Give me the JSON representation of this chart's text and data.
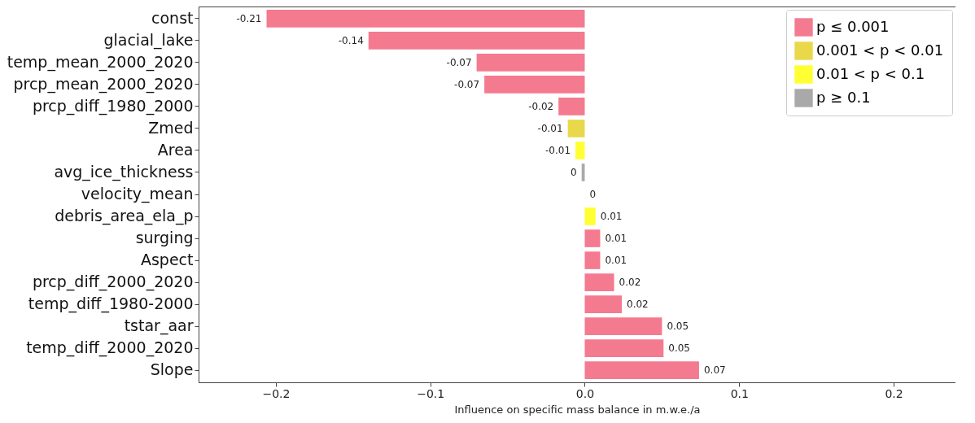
{
  "chart_data": {
    "type": "bar",
    "orientation": "horizontal",
    "xlabel": "Influence on specific mass balance in m.w.e./a",
    "categories": [
      "const",
      "glacial_lake",
      "temp_mean_2000_2020",
      "prcp_mean_2000_2020",
      "prcp_diff_1980_2000",
      "Zmed",
      "Area",
      "avg_ice_thickness",
      "velocity_mean",
      "debris_area_ela_p",
      "surging",
      "Aspect",
      "prcp_diff_2000_2020",
      "temp_diff_1980-2000",
      "tstar_aar",
      "temp_diff_2000_2020",
      "Slope"
    ],
    "series": [
      {
        "name": "p ≤ 0.001",
        "color": "#f47a90",
        "values": [
          -0.206,
          -0.14,
          -0.07,
          -0.065,
          -0.017,
          null,
          null,
          null,
          null,
          null,
          0.01,
          0.01,
          0.019,
          0.024,
          0.05,
          0.051,
          0.074
        ],
        "value_labels": [
          "-0.21",
          "-0.14",
          "-0.07",
          "-0.07",
          "-0.02",
          null,
          null,
          null,
          null,
          null,
          "0.01",
          "0.01",
          "0.02",
          "0.02",
          "0.05",
          "0.05",
          "0.07"
        ]
      },
      {
        "name": "0.001 < p < 0.01",
        "color": "#e8d84a",
        "values": [
          null,
          null,
          null,
          null,
          null,
          -0.011,
          null,
          null,
          null,
          null,
          null,
          null,
          null,
          null,
          null,
          null,
          null
        ],
        "value_labels": [
          null,
          null,
          null,
          null,
          null,
          "-0.01",
          null,
          null,
          null,
          null,
          null,
          null,
          null,
          null,
          null,
          null,
          null
        ]
      },
      {
        "name": "0.01 < p < 0.1",
        "color": "#ffff33",
        "values": [
          null,
          null,
          null,
          null,
          null,
          null,
          -0.006,
          null,
          null,
          0.007,
          null,
          null,
          null,
          null,
          null,
          null,
          null
        ],
        "value_labels": [
          null,
          null,
          null,
          null,
          null,
          null,
          "-0.01",
          null,
          null,
          "0.01",
          null,
          null,
          null,
          null,
          null,
          null,
          null
        ]
      },
      {
        "name": "p ≥ 0.1",
        "color": "#a9a9a9",
        "values": [
          null,
          null,
          null,
          null,
          null,
          null,
          null,
          -0.002,
          0,
          null,
          null,
          null,
          null,
          null,
          null,
          null,
          null
        ],
        "value_labels": [
          null,
          null,
          null,
          null,
          null,
          null,
          null,
          "0",
          "0",
          null,
          null,
          null,
          null,
          null,
          null,
          null,
          null
        ]
      }
    ],
    "xlim": [
      -0.25,
      0.24
    ],
    "xticks": [
      {
        "value": -0.2,
        "label": "−0.2"
      },
      {
        "value": -0.1,
        "label": "−0.1"
      },
      {
        "value": 0,
        "label": "0.0"
      },
      {
        "value": 0.1,
        "label": "0.1"
      },
      {
        "value": 0.2,
        "label": "0.2"
      }
    ],
    "legend": "top right",
    "grid": false
  }
}
